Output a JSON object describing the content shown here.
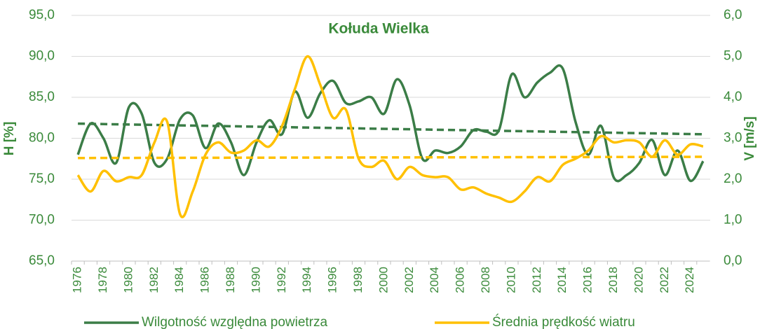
{
  "chart_data": {
    "type": "line",
    "title": "Kołuda Wielka",
    "y_label": "H [%]",
    "y2_label": "V [m/s]",
    "categories": [
      "1976",
      null,
      "1978",
      null,
      "1980",
      null,
      "1982",
      null,
      "1984",
      null,
      "1986",
      null,
      "1988",
      null,
      "1990",
      null,
      "1992",
      null,
      "1994",
      null,
      "1996",
      null,
      "1998",
      null,
      "2000",
      null,
      "2002",
      null,
      "2004",
      null,
      "2006",
      null,
      "2008",
      null,
      "2010",
      null,
      "2012",
      null,
      "2014",
      null,
      "2016",
      null,
      "2018",
      null,
      "2020",
      null,
      "2022",
      null,
      "2024",
      null
    ],
    "series": [
      {
        "name": "Wilgotność względna powietrza",
        "color": "#3b7d47",
        "axis": "y",
        "trendline": true,
        "values": [
          78.0,
          81.8,
          80.0,
          77.0,
          83.8,
          83.0,
          77.0,
          77.5,
          82.3,
          82.8,
          78.8,
          81.8,
          79.5,
          75.5,
          79.5,
          82.2,
          80.5,
          85.7,
          82.5,
          85.5,
          87.0,
          84.3,
          84.5,
          85.0,
          83.0,
          87.2,
          84.0,
          77.5,
          78.5,
          78.2,
          79.0,
          81.0,
          80.8,
          81.0,
          87.8,
          85.0,
          86.8,
          88.0,
          88.5,
          82.0,
          78.0,
          81.5,
          75.2,
          75.5,
          77.0,
          79.8,
          75.5,
          78.5,
          74.8,
          77.2
        ]
      },
      {
        "name": "Średnia prędkość wiatru",
        "color": "#ffc000",
        "axis": "y2",
        "trendline": true,
        "values": [
          2.1,
          1.7,
          2.2,
          1.95,
          2.05,
          2.1,
          2.9,
          3.4,
          1.15,
          1.7,
          2.6,
          2.9,
          2.65,
          2.7,
          2.95,
          2.8,
          3.3,
          4.2,
          5.0,
          4.3,
          3.5,
          3.7,
          2.5,
          2.3,
          2.45,
          2.0,
          2.3,
          2.1,
          2.05,
          2.05,
          1.75,
          1.8,
          1.65,
          1.55,
          1.45,
          1.7,
          2.05,
          1.95,
          2.35,
          2.5,
          2.7,
          3.05,
          2.9,
          2.95,
          2.9,
          2.55,
          2.95,
          2.6,
          2.85,
          2.8
        ]
      }
    ],
    "ylim": [
      65,
      95
    ],
    "yticks": [
      {
        "value": 65,
        "label": "65,0"
      },
      {
        "value": 70,
        "label": "70,0"
      },
      {
        "value": 75,
        "label": "75,0"
      },
      {
        "value": 80,
        "label": "80,0"
      },
      {
        "value": 85,
        "label": "85,0"
      },
      {
        "value": 90,
        "label": "90,0"
      },
      {
        "value": 95,
        "label": "95,0"
      }
    ],
    "y2lim": [
      0,
      6
    ],
    "y2ticks": [
      {
        "value": 0,
        "label": "0,0"
      },
      {
        "value": 1,
        "label": "1,0"
      },
      {
        "value": 2,
        "label": "2,0"
      },
      {
        "value": 3,
        "label": "3,0"
      },
      {
        "value": 4,
        "label": "4,0"
      },
      {
        "value": 5,
        "label": "5,0"
      },
      {
        "value": 6,
        "label": "6,0"
      }
    ],
    "grid": true,
    "legend": "bottom"
  }
}
